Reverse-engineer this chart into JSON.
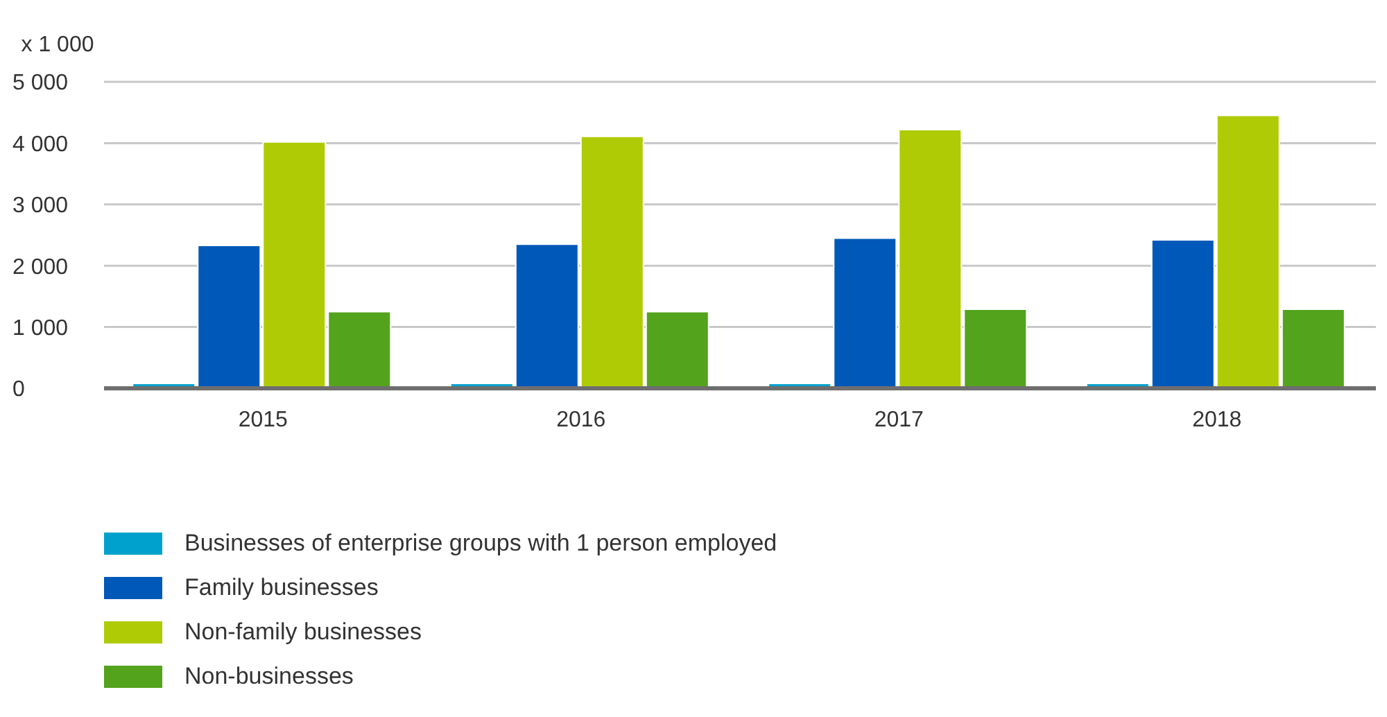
{
  "chart_data": {
    "type": "bar",
    "ylabel": "x 1 000",
    "categories": [
      "2015",
      "2016",
      "2017",
      "2018"
    ],
    "series": [
      {
        "name": "Businesses of enterprise groups with 1 person employed",
        "color": "#00a1cd",
        "values": [
          80,
          80,
          80,
          80
        ]
      },
      {
        "name": "Family businesses",
        "color": "#0058b8",
        "values": [
          2330,
          2350,
          2450,
          2420
        ]
      },
      {
        "name": "Non-family businesses",
        "color": "#afcb05",
        "values": [
          4020,
          4110,
          4220,
          4450
        ]
      },
      {
        "name": "Non-businesses",
        "color": "#53a31d",
        "values": [
          1250,
          1250,
          1290,
          1290
        ]
      }
    ],
    "ylim": [
      0,
      5000
    ],
    "yticks": [
      {
        "value": 0,
        "label": "0"
      },
      {
        "value": 1000,
        "label": "1 000"
      },
      {
        "value": 2000,
        "label": "2 000"
      },
      {
        "value": 3000,
        "label": "3 000"
      },
      {
        "value": 4000,
        "label": "4 000"
      },
      {
        "value": 5000,
        "label": "5 000"
      }
    ],
    "grid": "y",
    "legend": "bottom left"
  }
}
